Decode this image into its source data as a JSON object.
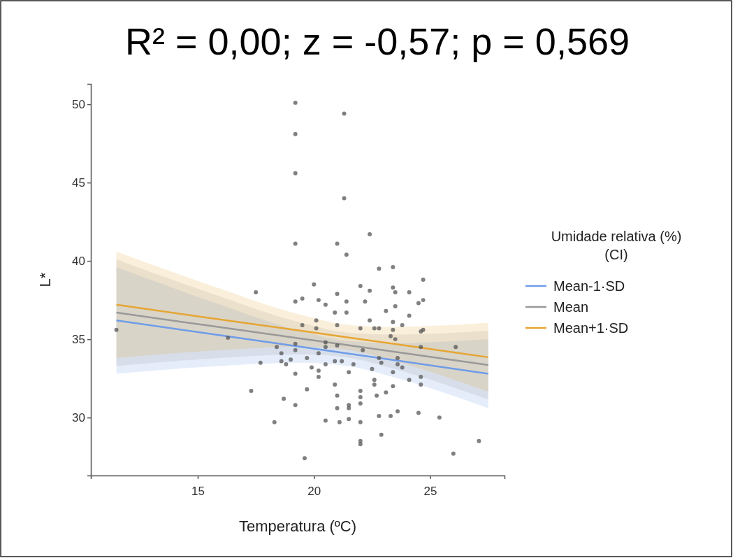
{
  "chart_data": {
    "type": "scatter",
    "title": "R² = 0,00; z = -0,57; p = 0,569",
    "xlabel": "Temperatura (ºC)",
    "ylabel": "L*",
    "legend_title": "Umidade relativa (%)\n(CI)",
    "xlim": [
      10.4,
      28.2
    ],
    "ylim": [
      26.3,
      51.3
    ],
    "xticks": [
      15,
      20,
      25
    ],
    "yticks": [
      30,
      35,
      40,
      45,
      50
    ],
    "grid": false,
    "legend": "right",
    "series": [
      {
        "color": "#555555",
        "marker": "circle",
        "x": [
          19.2,
          21.3,
          19.2,
          19.2,
          21.3,
          22.4,
          19.2,
          21.0,
          21.4,
          22.8,
          23.4,
          24.7,
          17.5,
          20.0,
          22.0,
          22.4,
          23.4,
          23.5,
          24.1,
          24.7,
          24.5,
          19.2,
          19.5,
          20.2,
          20.5,
          21.0,
          21.4,
          22.2,
          20.9,
          21.4,
          23.1,
          23.5,
          24.1,
          22.4,
          20.1,
          20.1,
          19.5,
          21.0,
          22.0,
          22.6,
          22.8,
          23.4,
          23.8,
          23.4,
          24.6,
          24.7,
          23.3,
          23.5,
          26.1,
          24.6,
          18.4,
          19.2,
          19.2,
          20.5,
          20.5,
          21.0,
          22.1,
          20.2,
          18.6,
          17.7,
          18.6,
          18.8,
          19.0,
          19.7,
          20.5,
          20.9,
          21.2,
          21.7,
          22.5,
          22.8,
          22.9,
          23.6,
          23.6,
          23.8,
          19.9,
          20.2,
          20.2,
          19.2,
          21.5,
          23.4,
          24.1,
          24.6,
          24.6,
          22.6,
          22.6,
          23.4,
          20.9,
          19.7,
          17.3,
          22.0,
          22.0,
          22.0,
          21.0,
          22.7,
          23.1,
          18.7,
          19.2,
          21.5,
          21.5,
          21.0,
          23.6,
          22.8,
          23.3,
          24.5,
          25.4,
          18.3,
          20.5,
          21.1,
          21.5,
          22.0,
          22.9,
          22.0,
          22.0,
          27.1,
          26.0,
          19.6,
          11.5,
          16.3
        ],
        "values": [
          50.1,
          49.4,
          48.1,
          45.6,
          44.0,
          41.7,
          41.1,
          41.1,
          40.4,
          39.5,
          39.6,
          38.8,
          38.0,
          38.5,
          38.4,
          38.1,
          38.3,
          38.0,
          38.0,
          37.5,
          37.3,
          37.4,
          37.6,
          37.5,
          37.2,
          37.9,
          37.4,
          37.4,
          36.7,
          36.7,
          36.8,
          37.1,
          36.5,
          36.2,
          36.2,
          35.7,
          35.9,
          35.9,
          35.7,
          35.7,
          35.7,
          36.1,
          35.9,
          35.6,
          35.5,
          35.6,
          35.2,
          35.0,
          34.5,
          34.5,
          34.5,
          34.7,
          34.3,
          34.8,
          34.5,
          34.6,
          34.3,
          34.1,
          34.1,
          33.5,
          33.6,
          33.4,
          33.7,
          33.8,
          33.4,
          33.6,
          33.6,
          33.4,
          33.1,
          33.8,
          33.5,
          33.8,
          33.4,
          33.2,
          33.2,
          33.0,
          32.6,
          32.8,
          32.9,
          32.9,
          32.4,
          32.6,
          32.1,
          32.4,
          32.1,
          32.0,
          32.1,
          31.8,
          31.7,
          31.7,
          31.3,
          30.9,
          31.4,
          31.4,
          31.6,
          31.2,
          30.8,
          30.8,
          30.6,
          30.6,
          30.4,
          30.1,
          30.1,
          30.3,
          30.0,
          29.7,
          29.8,
          29.7,
          29.9,
          29.7,
          28.9,
          28.5,
          28.3,
          28.5,
          27.7,
          27.4,
          35.6,
          35.1
        ]
      },
      {
        "type": "line",
        "name": "Mean-1·SD",
        "color": "#6f9ce8",
        "x": [
          11.5,
          15.5,
          19.5,
          21.5,
          23.5,
          27.5
        ],
        "values": [
          36.2,
          35.35,
          34.5,
          34.08,
          33.65,
          32.8
        ],
        "lower": [
          32.8,
          33.25,
          33.5,
          33.28,
          32.55,
          30.6
        ],
        "upper": [
          39.6,
          37.45,
          35.5,
          34.88,
          34.75,
          35.0
        ]
      },
      {
        "type": "line",
        "name": "Mean",
        "color": "#999999",
        "x": [
          11.5,
          15.5,
          19.5,
          21.5,
          23.5,
          27.5
        ],
        "values": [
          36.7,
          35.86,
          35.03,
          34.61,
          34.19,
          33.35
        ],
        "lower": [
          33.3,
          33.76,
          34.03,
          33.81,
          33.09,
          31.15
        ],
        "upper": [
          40.1,
          37.96,
          36.03,
          35.41,
          35.29,
          35.55
        ]
      },
      {
        "type": "line",
        "name": "Mean+1·SD",
        "color": "#e6a532",
        "x": [
          11.5,
          15.5,
          19.5,
          21.5,
          23.5,
          27.5
        ],
        "values": [
          37.2,
          36.36,
          35.53,
          35.11,
          34.69,
          33.85
        ],
        "lower": [
          33.8,
          34.26,
          34.53,
          34.31,
          33.59,
          31.65
        ],
        "upper": [
          40.6,
          38.46,
          36.53,
          35.91,
          35.79,
          36.05
        ]
      }
    ]
  }
}
